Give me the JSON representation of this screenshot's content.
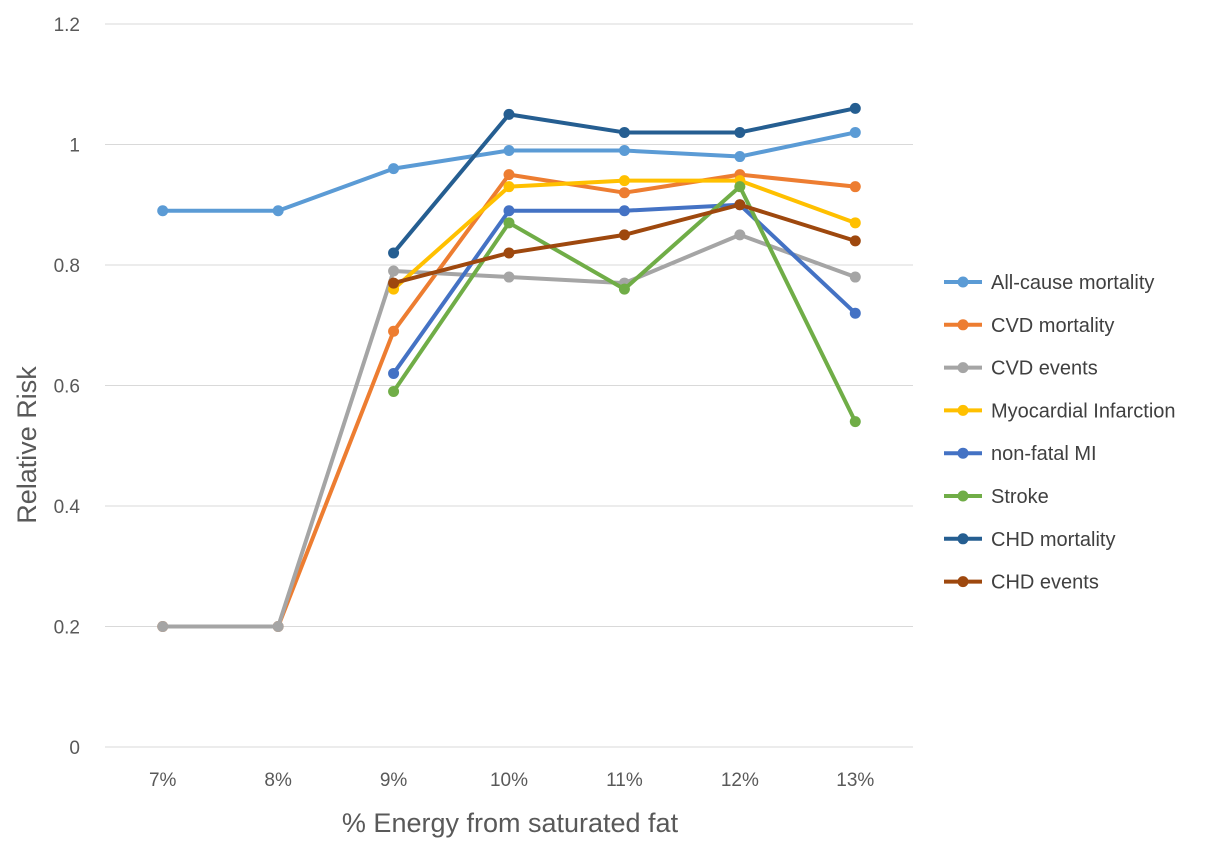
{
  "chart_data": {
    "type": "line",
    "title": "",
    "xlabel": "% Energy from saturated fat",
    "ylabel": "Relative Risk",
    "categories": [
      "7%",
      "8%",
      "9%",
      "10%",
      "11%",
      "12%",
      "13%"
    ],
    "yticks": [
      "0",
      "0.2",
      "0.4",
      "0.6",
      "0.8",
      "1",
      "1.2"
    ],
    "ylim": [
      0,
      1.2
    ],
    "grid": true,
    "legend_position": "right",
    "series": [
      {
        "name": "All-cause mortality",
        "color": "#5B9BD5",
        "values": [
          0.89,
          0.89,
          0.96,
          0.99,
          0.99,
          0.98,
          1.02
        ]
      },
      {
        "name": "CVD mortality",
        "color": "#ED7D31",
        "values": [
          0.2,
          0.2,
          0.69,
          0.95,
          0.92,
          0.95,
          0.93
        ]
      },
      {
        "name": "CVD events",
        "color": "#A5A5A5",
        "values": [
          0.2,
          0.2,
          0.79,
          0.78,
          0.77,
          0.85,
          0.78
        ]
      },
      {
        "name": "Myocardial Infarction",
        "color": "#FFC000",
        "values": [
          null,
          null,
          0.76,
          0.93,
          0.94,
          0.94,
          0.87
        ]
      },
      {
        "name": "non-fatal MI",
        "color": "#4472C4",
        "values": [
          null,
          null,
          0.62,
          0.89,
          0.89,
          0.9,
          0.72
        ]
      },
      {
        "name": "Stroke",
        "color": "#70AD47",
        "values": [
          null,
          null,
          0.59,
          0.87,
          0.76,
          0.93,
          0.54
        ]
      },
      {
        "name": "CHD mortality",
        "color": "#255E91",
        "values": [
          null,
          null,
          0.82,
          1.05,
          1.02,
          1.02,
          1.06
        ]
      },
      {
        "name": "CHD events",
        "color": "#9E480E",
        "values": [
          null,
          null,
          0.77,
          0.82,
          0.85,
          0.9,
          0.84
        ]
      }
    ]
  }
}
